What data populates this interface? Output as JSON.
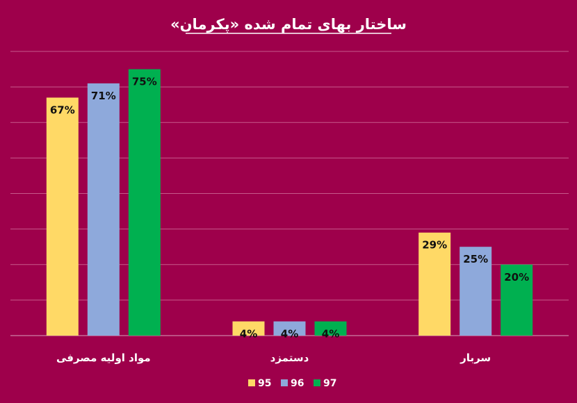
{
  "chart_data": {
    "type": "bar",
    "title": "ساختار بهای تمام شده «پکرمان»",
    "categories": [
      "مواد اولیه مصرفی",
      "دستمزد",
      "سربار"
    ],
    "series": [
      {
        "name": "95",
        "color": "#ffd966",
        "values": [
          67,
          4,
          29
        ],
        "labels": [
          "67%",
          "4%",
          "29%"
        ]
      },
      {
        "name": "96",
        "color": "#8ea9db",
        "values": [
          71,
          4,
          25
        ],
        "labels": [
          "71%",
          "4%",
          "25%"
        ]
      },
      {
        "name": "97",
        "color": "#00b050",
        "values": [
          75,
          4,
          20
        ],
        "labels": [
          "75%",
          "4%",
          "20%"
        ]
      }
    ],
    "ylim": [
      0,
      80
    ],
    "grid": true,
    "legend_position": "bottom"
  }
}
